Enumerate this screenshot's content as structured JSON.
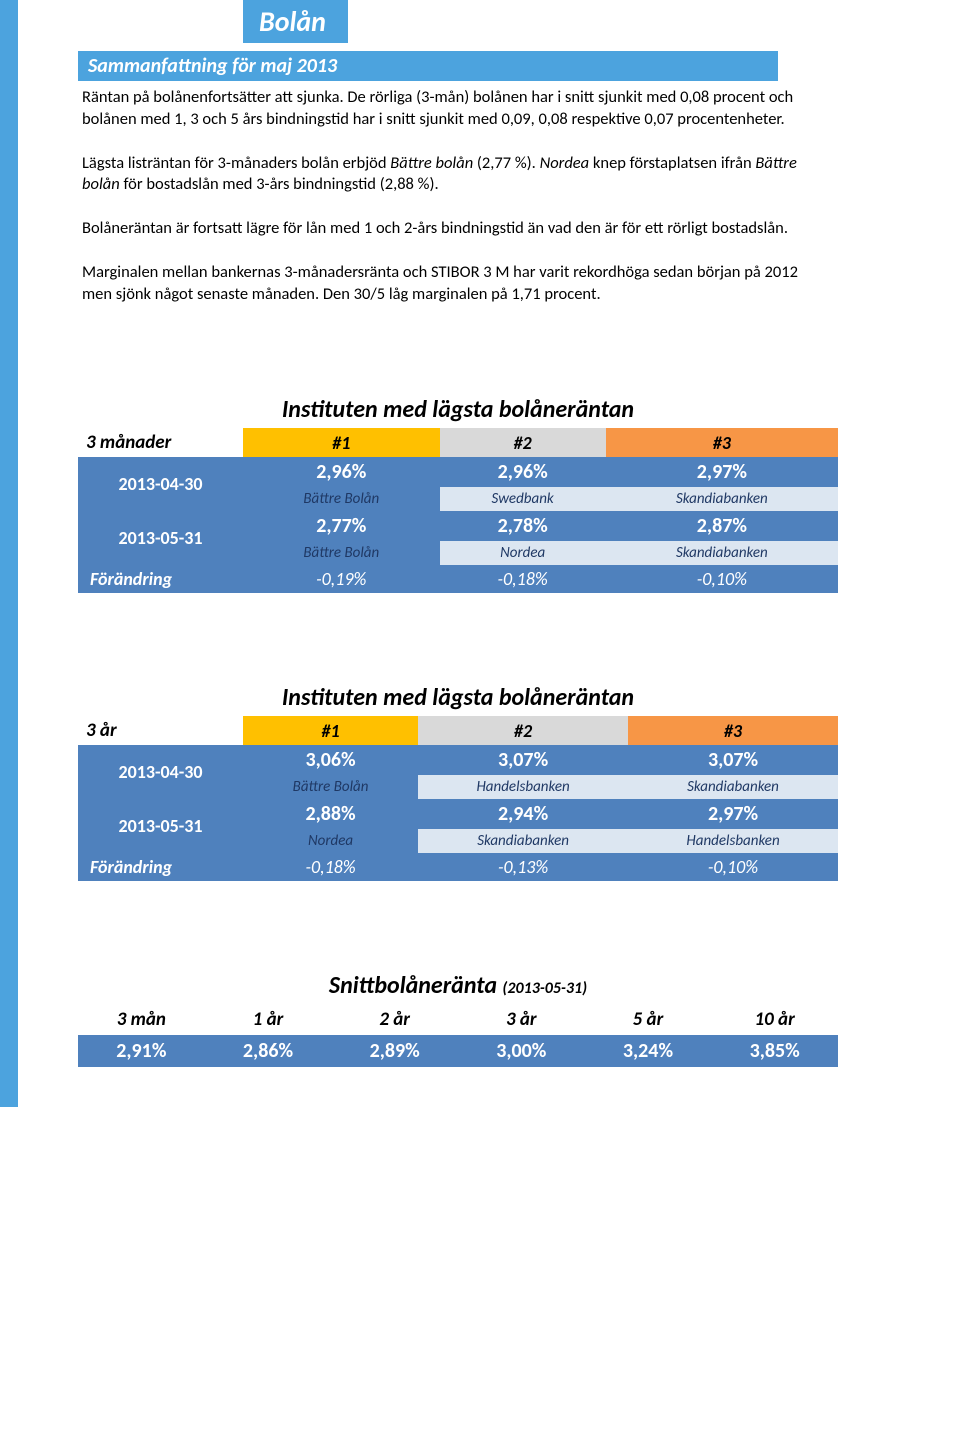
{
  "page_title": "Bolån",
  "summary": {
    "heading": "Sammanfattning för maj 2013",
    "paragraphs": [
      "Räntan på bolånenfortsätter att sjunka. De rörliga (3-mån) bolånen har i snitt sjunkit med 0,08 procent och bolånen med 1, 3 och 5 års bindningstid har i snitt sjunkit med 0,09, 0,08 respektive 0,07 procentenheter.",
      "Lägsta listräntan för 3-månaders bolån erbjöd <i>Bättre bolån</i>  (2,77 %). <i>Nordea</i>  knep förstaplatsen ifrån <i>Bättre bolån</i>  för bostadslån med 3-års bindningstid (2,88 %).",
      "Bolåneräntan är fortsatt lägre för lån med 1 och 2-års bindningstid än vad den är för ett rörligt bostadslån.",
      "Marginalen mellan bankernas 3-månadersränta och STIBOR 3 M har varit rekordhöga sedan början på 2012 men sjönk något senaste månaden. Den 30/5 låg marginalen på 1,71 procent."
    ]
  },
  "tables": [
    {
      "title": "Instituten med lägsta bolåneräntan",
      "left_header": "3 månader",
      "ranks": [
        "#1",
        "#2",
        "#3"
      ],
      "rows": [
        {
          "date": "2013-04-30",
          "values": [
            "2,96%",
            "2,96%",
            "2,97%"
          ],
          "labels": [
            "Bättre Bolån",
            "Swedbank",
            "Skandiabanken"
          ]
        },
        {
          "date": "2013-05-31",
          "values": [
            "2,77%",
            "2,78%",
            "2,87%"
          ],
          "labels": [
            "Bättre Bolån",
            "Nordea",
            "Skandiabanken"
          ]
        }
      ],
      "change": {
        "label": "Förändring",
        "values": [
          "-0,19%",
          "-0,18%",
          "-0,10%"
        ]
      }
    },
    {
      "title": "Instituten med lägsta bolåneräntan",
      "left_header": "3 år",
      "ranks": [
        "#1",
        "#2",
        "#3"
      ],
      "rows": [
        {
          "date": "2013-04-30",
          "values": [
            "3,06%",
            "3,07%",
            "3,07%"
          ],
          "labels": [
            "Bättre Bolån",
            "Handelsbanken",
            "Skandiabanken"
          ]
        },
        {
          "date": "2013-05-31",
          "values": [
            "2,88%",
            "2,94%",
            "2,97%"
          ],
          "labels": [
            "Nordea",
            "Skandiabanken",
            "Handelsbanken"
          ]
        }
      ],
      "change": {
        "label": "Förändring",
        "values": [
          "-0,18%",
          "-0,13%",
          "-0,10%"
        ]
      }
    }
  ],
  "avg_table": {
    "title": "Snittbolåneränta",
    "subtitle": "(2013-05-31)",
    "headers": [
      "3 mån",
      "1 år",
      "2 år",
      "3 år",
      "5 år",
      "10 år"
    ],
    "values": [
      "2,91%",
      "2,86%",
      "2,89%",
      "3,00%",
      "3,24%",
      "3,85%"
    ]
  },
  "colors": {
    "frame_blue": "#4ca3de",
    "table_blue": "#4f81bd",
    "label_bg": "#dce6f1",
    "gold": "#ffc000",
    "silver": "#d9d9d9",
    "bronze": "#f79646"
  }
}
